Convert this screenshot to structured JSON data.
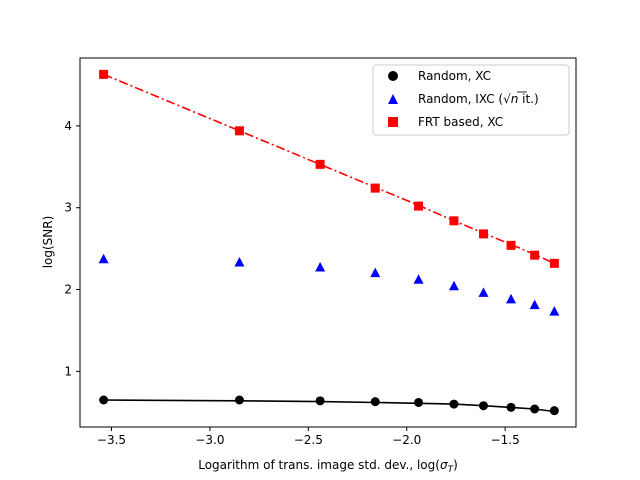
{
  "chart_data": {
    "type": "scatter",
    "title": "",
    "xlabel": "Logarithm of trans. image std. dev., log(σT)",
    "xlabel_main": "Logarithm of trans. image std. dev., log(",
    "xlabel_sigma": "σ",
    "xlabel_sub": "T",
    "xlabel_end": ")",
    "ylabel": "log(SNR)",
    "xlim": [
      -3.66,
      -1.14
    ],
    "ylim": [
      0.32,
      4.83
    ],
    "xticks": [
      -3.5,
      -3.0,
      -2.5,
      -2.0,
      -1.5
    ],
    "xtick_labels": [
      "−3.5",
      "−3.0",
      "−2.5",
      "−2.0",
      "−1.5"
    ],
    "yticks": [
      1,
      2,
      3,
      4
    ],
    "ytick_labels": [
      "1",
      "2",
      "3",
      "4"
    ],
    "x": [
      -3.54,
      -2.85,
      -2.44,
      -2.16,
      -1.94,
      -1.76,
      -1.61,
      -1.47,
      -1.35,
      -1.25
    ],
    "series": [
      {
        "name": "Random, XC",
        "legend_label": "Random, XC",
        "color": "#000000",
        "marker": "circle",
        "values": [
          0.65,
          0.65,
          0.64,
          0.63,
          0.62,
          0.6,
          0.58,
          0.56,
          0.54,
          0.52
        ],
        "fit": {
          "style": "solid",
          "values": [
            0.65,
            0.64,
            0.63,
            0.62,
            0.61,
            0.6,
            0.58,
            0.56,
            0.54,
            0.51
          ]
        }
      },
      {
        "name": "Random, IXC (√n it.)",
        "legend_label": "Random, IXC (",
        "legend_sqrt_n": "√n",
        "legend_tail": " it.)",
        "color": "#0000ff",
        "marker": "triangle",
        "values": [
          2.37,
          2.33,
          2.27,
          2.2,
          2.12,
          2.04,
          1.96,
          1.88,
          1.81,
          1.73
        ]
      },
      {
        "name": "FRT based, XC",
        "legend_label": "FRT based, XC",
        "color": "#ff0000",
        "marker": "square",
        "values": [
          4.63,
          3.94,
          3.53,
          3.24,
          3.02,
          2.84,
          2.68,
          2.54,
          2.42,
          2.32
        ],
        "fit": {
          "style": "dashdot",
          "values": [
            4.63,
            3.94,
            3.53,
            3.25,
            3.03,
            2.84,
            2.69,
            2.55,
            2.43,
            2.32
          ]
        }
      }
    ],
    "legend_position": "upper-right"
  }
}
